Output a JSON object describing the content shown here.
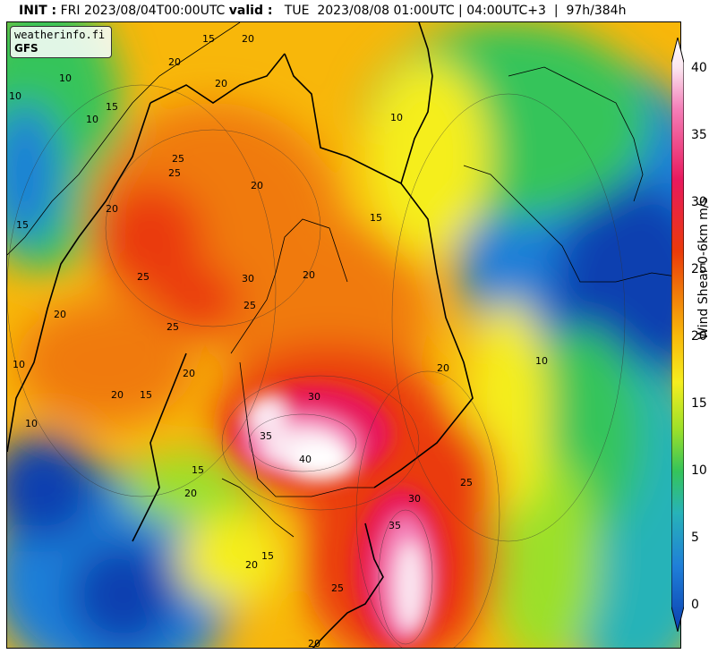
{
  "header": {
    "init_label": "INIT :",
    "init_value": " FRI 2023/08/04T00:00UTC ",
    "valid_label": "valid :",
    "valid_value": "   TUE  2023/08/08 01:00UTC | 04:00UTC+3  |  97h/384h"
  },
  "brand": {
    "site": "weatherinfo.fi",
    "model": "GFS"
  },
  "colorbar": {
    "label": "Wind Shear 0-6km m/s",
    "ticks": [
      "40",
      "35",
      "30",
      "25",
      "20",
      "15",
      "10",
      "5",
      "0"
    ],
    "range": [
      -2.5,
      42.5
    ],
    "colors": [
      "#0b3fb0",
      "#1f7fd8",
      "#27b3b8",
      "#35c45a",
      "#9be02a",
      "#f5ee1f",
      "#f8b70a",
      "#f07a0a",
      "#ea3a0a",
      "#e8195d",
      "#f47fb8",
      "#fbe7f1",
      "#ffffff"
    ]
  },
  "contour_labels": [
    "10",
    "10",
    "15",
    "20",
    "15",
    "20",
    "10",
    "15",
    "20",
    "25",
    "20",
    "15",
    "20",
    "25",
    "30",
    "25",
    "20",
    "10",
    "25",
    "20",
    "15",
    "20",
    "10",
    "20",
    "30",
    "35",
    "40",
    "10",
    "15",
    "20",
    "35",
    "30",
    "25",
    "25",
    "20",
    "15",
    "20",
    "25",
    "20",
    "10"
  ],
  "map_icons": [
    "coastline",
    "country-border"
  ]
}
